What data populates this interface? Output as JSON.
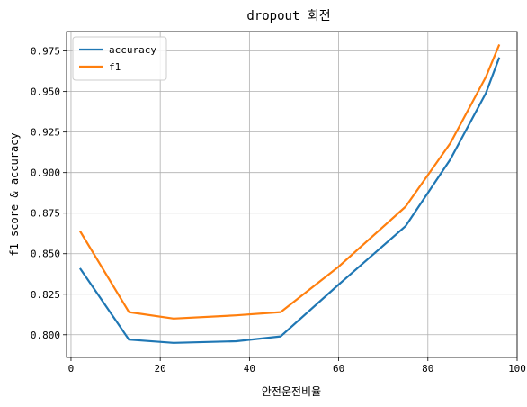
{
  "chart_data": {
    "type": "line",
    "title": "dropout_회전",
    "xlabel": "안전운전비율",
    "ylabel": "f1 score & accuracy",
    "xlim": [
      -1,
      100
    ],
    "ylim": [
      0.786,
      0.987
    ],
    "xticks": [
      0,
      20,
      40,
      60,
      80,
      100
    ],
    "xtick_labels": [
      "0",
      "20",
      "40",
      "60",
      "80",
      "100"
    ],
    "yticks": [
      0.8,
      0.825,
      0.85,
      0.875,
      0.9,
      0.925,
      0.95,
      0.975
    ],
    "ytick_labels": [
      "0.800",
      "0.825",
      "0.850",
      "0.875",
      "0.900",
      "0.925",
      "0.950",
      "0.975"
    ],
    "grid": true,
    "legend": "top-left",
    "series": [
      {
        "name": "accuracy",
        "color": "#1f77b4",
        "x": [
          2,
          13,
          23,
          37,
          47,
          60,
          75,
          85,
          93,
          96
        ],
        "y": [
          0.841,
          0.797,
          0.795,
          0.796,
          0.799,
          0.831,
          0.867,
          0.908,
          0.949,
          0.971
        ]
      },
      {
        "name": "f1",
        "color": "#ff7f0e",
        "x": [
          2,
          13,
          23,
          37,
          47,
          60,
          75,
          85,
          93,
          96
        ],
        "y": [
          0.864,
          0.814,
          0.81,
          0.812,
          0.814,
          0.842,
          0.879,
          0.918,
          0.959,
          0.979
        ]
      }
    ]
  }
}
